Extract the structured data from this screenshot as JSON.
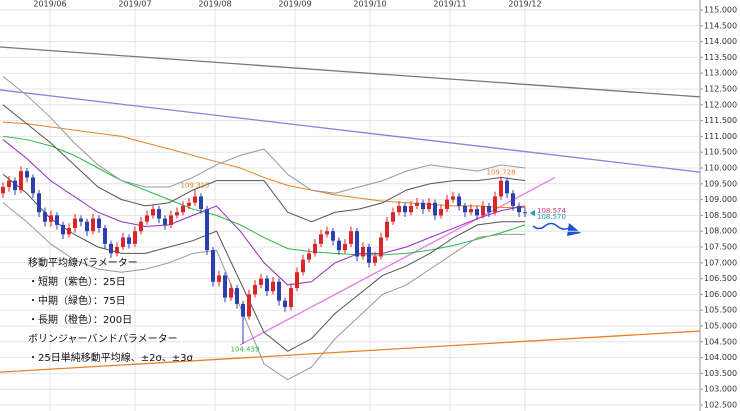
{
  "chart_data": {
    "type": "candlestick",
    "x_labels": [
      "2019/06",
      "2019/07",
      "2019/08",
      "2019/09",
      "2019/10",
      "2019/11",
      "2019/12"
    ],
    "ylim": [
      102.5,
      115
    ],
    "grid": true,
    "yticks": [
      {
        "value": 102.5,
        "label": "102.500"
      },
      {
        "value": 103,
        "label": "103.000"
      },
      {
        "value": 103.5,
        "label": "103.500"
      },
      {
        "value": 104,
        "label": "104.000"
      },
      {
        "value": 104.5,
        "label": "104.500"
      },
      {
        "value": 105,
        "label": "105.000"
      },
      {
        "value": 105.5,
        "label": "105.500"
      },
      {
        "value": 106,
        "label": "106.000"
      },
      {
        "value": 106.5,
        "label": "106.500"
      },
      {
        "value": 107,
        "label": "107.000"
      },
      {
        "value": 107.5,
        "label": "107.500"
      },
      {
        "value": 108,
        "label": "108.000"
      },
      {
        "value": 108.5,
        "label": "108.500"
      },
      {
        "value": 109,
        "label": "109.000"
      },
      {
        "value": 109.5,
        "label": "109.500"
      },
      {
        "value": 110,
        "label": "110.000"
      },
      {
        "value": 110.5,
        "label": "110.500"
      },
      {
        "value": 111,
        "label": "111.000"
      },
      {
        "value": 111.5,
        "label": "111.500"
      },
      {
        "value": 112,
        "label": "112.000"
      },
      {
        "value": 112.5,
        "label": "112.500"
      },
      {
        "value": 113,
        "label": "113.000"
      },
      {
        "value": 113.5,
        "label": "113.500"
      },
      {
        "value": 114,
        "label": "114.000"
      },
      {
        "value": 114.5,
        "label": "114.500"
      },
      {
        "value": 115,
        "label": "115.000"
      }
    ],
    "up_color": "#d9262b",
    "down_color": "#2c3fae",
    "candles": [
      [
        109.2,
        109.55,
        109.05,
        109.4
      ],
      [
        109.4,
        109.75,
        109.25,
        109.6
      ],
      [
        109.6,
        109.7,
        109.15,
        109.3
      ],
      [
        109.3,
        110.05,
        109.2,
        109.9
      ],
      [
        109.9,
        110,
        109.55,
        109.7
      ],
      [
        109.7,
        109.8,
        109.05,
        109.2
      ],
      [
        109.2,
        109.3,
        108.45,
        108.6
      ],
      [
        108.6,
        108.75,
        108.15,
        108.3
      ],
      [
        108.3,
        108.65,
        108.15,
        108.5
      ],
      [
        108.5,
        108.6,
        108.05,
        108.2
      ],
      [
        108.2,
        108.3,
        107.75,
        107.9
      ],
      [
        107.9,
        108.25,
        107.8,
        108.1
      ],
      [
        108.1,
        108.55,
        107.95,
        108.4
      ],
      [
        108.4,
        108.5,
        108.15,
        108.3
      ],
      [
        108.3,
        108.4,
        107.85,
        108
      ],
      [
        108,
        108.55,
        107.9,
        108.4
      ],
      [
        108.4,
        108.5,
        107.95,
        108.1
      ],
      [
        108.1,
        108.2,
        107.45,
        107.6
      ],
      [
        107.6,
        107.7,
        107.15,
        107.3
      ],
      [
        107.3,
        107.65,
        107.2,
        107.5
      ],
      [
        107.5,
        107.95,
        107.4,
        107.8
      ],
      [
        107.8,
        107.9,
        107.45,
        107.6
      ],
      [
        107.6,
        108.15,
        107.5,
        108
      ],
      [
        108,
        108.45,
        107.9,
        108.3
      ],
      [
        108.3,
        108.65,
        108.2,
        108.5
      ],
      [
        108.5,
        108.85,
        108.4,
        108.7
      ],
      [
        108.7,
        108.8,
        108.25,
        108.4
      ],
      [
        108.4,
        108.5,
        108.05,
        108.2
      ],
      [
        108.2,
        108.65,
        108.1,
        108.5
      ],
      [
        108.5,
        108.75,
        108.4,
        108.6
      ],
      [
        108.6,
        108.95,
        108.5,
        108.8
      ],
      [
        108.8,
        109.05,
        108.7,
        108.9
      ],
      [
        108.9,
        109.315,
        108.8,
        109.1
      ],
      [
        109.1,
        109.2,
        108.55,
        108.7
      ],
      [
        108.7,
        108.8,
        107.25,
        107.4
      ],
      [
        107.4,
        107.5,
        106.25,
        106.4
      ],
      [
        106.4,
        106.75,
        106.25,
        106.6
      ],
      [
        106.6,
        106.7,
        105.75,
        105.9
      ],
      [
        105.9,
        106.35,
        105.8,
        106.2
      ],
      [
        106.2,
        106.3,
        105.55,
        105.7
      ],
      [
        105.7,
        105.8,
        104.439,
        105.3
      ],
      [
        105.3,
        106.15,
        105.2,
        106
      ],
      [
        106,
        106.45,
        105.9,
        106.3
      ],
      [
        106.3,
        106.65,
        106.2,
        106.5
      ],
      [
        106.5,
        106.6,
        105.95,
        106.1
      ],
      [
        106.1,
        106.55,
        106,
        106.4
      ],
      [
        106.4,
        106.5,
        105.65,
        105.8
      ],
      [
        105.8,
        105.9,
        105.45,
        105.6
      ],
      [
        105.6,
        106.35,
        105.5,
        106.2
      ],
      [
        106.2,
        106.85,
        106.1,
        106.7
      ],
      [
        106.7,
        107.25,
        106.6,
        107.1
      ],
      [
        107.1,
        107.45,
        107,
        107.3
      ],
      [
        107.3,
        107.75,
        107.2,
        107.6
      ],
      [
        107.6,
        108.05,
        107.5,
        107.9
      ],
      [
        107.9,
        108.15,
        107.8,
        108
      ],
      [
        108,
        108.1,
        107.55,
        107.7
      ],
      [
        107.7,
        107.8,
        107.25,
        107.4
      ],
      [
        107.4,
        107.75,
        107.3,
        107.6
      ],
      [
        107.6,
        108.15,
        107.5,
        108
      ],
      [
        108,
        108.1,
        107.05,
        107.2
      ],
      [
        107.2,
        107.65,
        107.1,
        107.5
      ],
      [
        107.5,
        107.6,
        106.85,
        107
      ],
      [
        107,
        107.35,
        106.9,
        107.2
      ],
      [
        107.2,
        107.95,
        107.1,
        107.8
      ],
      [
        107.8,
        108.45,
        107.7,
        108.3
      ],
      [
        108.3,
        108.75,
        108.2,
        108.6
      ],
      [
        108.6,
        108.95,
        108.5,
        108.8
      ],
      [
        108.8,
        108.9,
        108.45,
        108.6
      ],
      [
        108.6,
        108.95,
        108.5,
        108.8
      ],
      [
        108.8,
        109.05,
        108.7,
        108.9
      ],
      [
        108.9,
        109,
        108.55,
        108.7
      ],
      [
        108.7,
        109.05,
        108.6,
        108.9
      ],
      [
        108.9,
        109,
        108.35,
        108.5
      ],
      [
        108.5,
        108.85,
        108.4,
        108.7
      ],
      [
        108.7,
        109.15,
        108.6,
        109
      ],
      [
        109,
        109.25,
        108.9,
        109.1
      ],
      [
        109.1,
        109.2,
        108.65,
        108.8
      ],
      [
        108.8,
        108.9,
        108.45,
        108.6
      ],
      [
        108.6,
        108.85,
        108.5,
        108.7
      ],
      [
        108.7,
        108.8,
        108.35,
        108.5
      ],
      [
        108.5,
        108.95,
        108.4,
        108.8
      ],
      [
        108.8,
        108.9,
        108.45,
        108.6
      ],
      [
        108.6,
        109.25,
        108.5,
        109.1
      ],
      [
        109.1,
        109.728,
        109,
        109.6
      ],
      [
        109.6,
        109.7,
        109.05,
        109.2
      ],
      [
        109.2,
        109.3,
        108.65,
        108.8
      ],
      [
        108.8,
        108.9,
        108.45,
        108.6
      ],
      [
        108.6,
        108.75,
        108.45,
        108.57
      ]
    ],
    "series": [
      {
        "name": "長期",
        "color": "#e8822a",
        "values": [
          111.45,
          111.4,
          111.3,
          111.2,
          111.1,
          111,
          110.8,
          110.6,
          110.4,
          110.2,
          110,
          109.7,
          109.45,
          109.3,
          109.15,
          109.05,
          108.95,
          108.9,
          108.85,
          108.8,
          108.8,
          108.75,
          108.75
        ]
      },
      {
        "name": "中期",
        "color": "#2db84a",
        "values": [
          111,
          110.9,
          110.7,
          110.4,
          110,
          109.6,
          109.3,
          109,
          108.7,
          108.5,
          108.2,
          107.8,
          107.45,
          107.35,
          107.3,
          107.25,
          107.25,
          107.3,
          107.4,
          107.55,
          107.75,
          107.95,
          108.2
        ]
      },
      {
        "name": "短期",
        "color": "#9b2bbf",
        "values": [
          110.9,
          110.3,
          109.6,
          109.1,
          108.6,
          108.3,
          108.15,
          108.2,
          108.5,
          108.8,
          108,
          107,
          106.3,
          106.4,
          107,
          107.3,
          107.3,
          107.5,
          107.8,
          108.1,
          108.4,
          108.65,
          108.8
        ]
      },
      {
        "name": "+2σ",
        "color": "#555555",
        "values": [
          112,
          111.4,
          110.8,
          110.1,
          109.4,
          109,
          108.8,
          108.9,
          109.3,
          109.6,
          109.6,
          109.6,
          108.6,
          108.3,
          108.6,
          108.7,
          108.9,
          109.3,
          109.5,
          109.6,
          109.6,
          109.7,
          109.6
        ]
      },
      {
        "name": "-2σ",
        "color": "#555555",
        "values": [
          109.8,
          109.2,
          108.4,
          107.9,
          107.5,
          107.3,
          107.3,
          107.5,
          107.7,
          108,
          106.4,
          104.8,
          104.2,
          104.6,
          105.4,
          106,
          106.6,
          106.9,
          107.3,
          107.8,
          108.2,
          108.3,
          108.3
        ]
      },
      {
        "name": "+3σ",
        "color": "#999999",
        "values": [
          112.9,
          112.3,
          111.6,
          110.8,
          110.1,
          109.6,
          109.4,
          109.4,
          109.7,
          110.1,
          110.4,
          110.6,
          109.8,
          109.3,
          109.2,
          109.4,
          109.6,
          109.9,
          110.1,
          110,
          109.9,
          110.1,
          110
        ]
      },
      {
        "name": "-3σ",
        "color": "#999999",
        "values": [
          108.9,
          108.3,
          107.6,
          107.1,
          106.8,
          106.7,
          106.8,
          107,
          107.3,
          107.4,
          105.6,
          103.8,
          103.3,
          103.7,
          104.6,
          105.3,
          106,
          106.3,
          106.8,
          107.3,
          107.8,
          107.9,
          107.9
        ]
      }
    ],
    "trendlines": [
      {
        "color": "#777777",
        "values": [
          113.83,
          112.25
        ]
      },
      {
        "color": "#8a7fe0",
        "values": [
          112.47,
          109.87
        ]
      },
      {
        "color": "#e8822a",
        "values": [
          103.54,
          104.84
        ]
      },
      {
        "color": "#e67ce6",
        "values": [
          104.4,
          109.7
        ]
      }
    ],
    "markers": [
      {
        "value": 108.574,
        "color": "#d6336c"
      },
      {
        "value": 108.57,
        "label": "108.570",
        "color": "#17a2c8"
      }
    ],
    "notes": [
      "移動平均線パラメーター",
      "・短期（紫色）：25日",
      "・中期（緑色）：75日",
      "・長期（橙色）：200日",
      "ボリンジャーバンドパラメーター",
      "・25日単純移動平均線、±2σ、±3σ"
    ]
  }
}
